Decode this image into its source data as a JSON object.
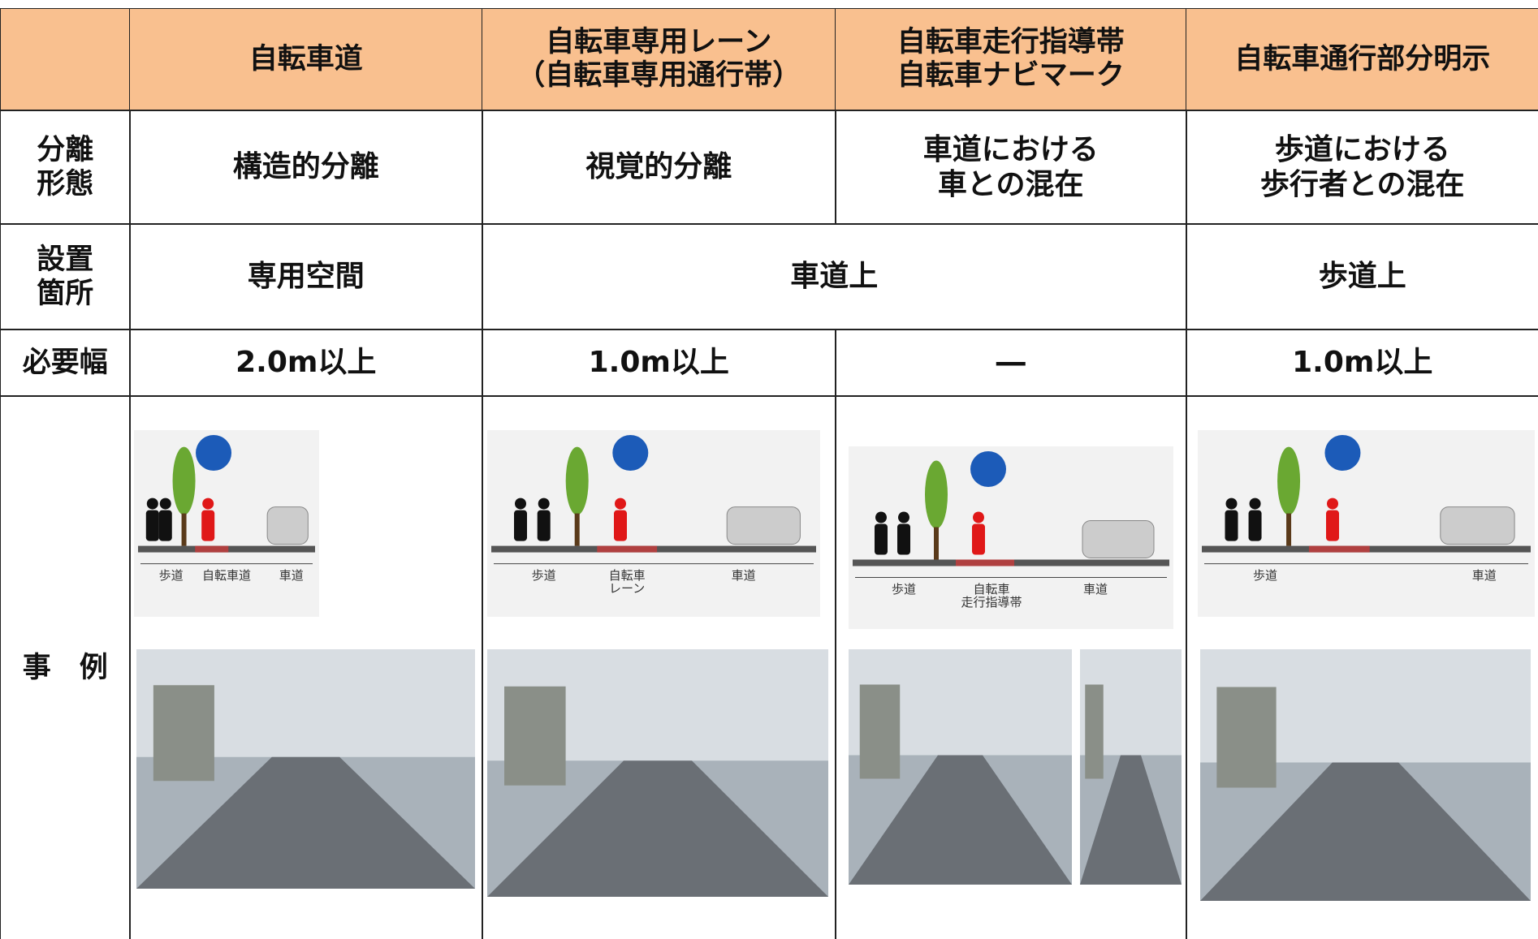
{
  "table": {
    "header": [
      {
        "lines": [
          "自転車道"
        ]
      },
      {
        "lines": [
          "自転車専用レーン",
          "（自転車専用通行帯）"
        ]
      },
      {
        "lines": [
          "自転車走行指導帯",
          "自転車ナビマーク"
        ]
      },
      {
        "lines": [
          "自転車通行部分明示"
        ]
      }
    ],
    "rows": [
      {
        "label": [
          "分離",
          "形態"
        ],
        "cells": [
          [
            "構造的分離"
          ],
          [
            "視覚的分離"
          ],
          [
            "車道における",
            "車との混在"
          ],
          [
            "歩道における",
            "歩行者との混在"
          ]
        ]
      },
      {
        "label": [
          "設置",
          "箇所"
        ],
        "cells": [
          [
            "専用空間"
          ],
          [
            "車道上"
          ],
          [
            "歩道上"
          ]
        ]
      },
      {
        "label": [
          "必要幅"
        ],
        "cells": [
          [
            "2.0m以上"
          ],
          [
            "1.0m以上"
          ],
          [
            "―"
          ],
          [
            "1.0m以上"
          ]
        ]
      },
      {
        "label": [
          "事　例"
        ],
        "cells": []
      }
    ],
    "examples": [
      {
        "labels": [
          [
            "歩道"
          ],
          [
            "自転車道"
          ],
          [
            "車道"
          ]
        ]
      },
      {
        "labels": [
          [
            "歩道"
          ],
          [
            "自転車",
            "レーン"
          ],
          [
            "車道"
          ]
        ]
      },
      {
        "labels": [
          [
            "歩道"
          ],
          [
            "自転車",
            "走行指導帯"
          ],
          [
            "車道"
          ]
        ]
      },
      {
        "labels": [
          [
            "歩道"
          ],
          [
            "車道"
          ]
        ]
      }
    ]
  }
}
